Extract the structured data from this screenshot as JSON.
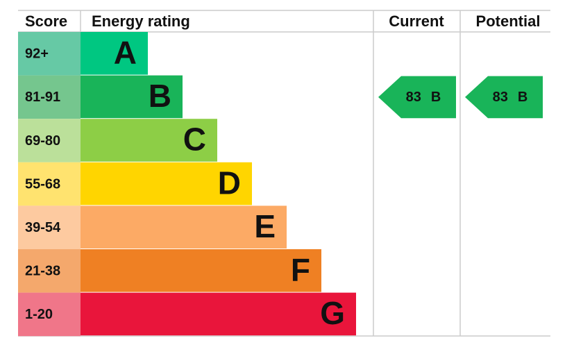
{
  "header": {
    "score": "Score",
    "rating": "Energy rating",
    "current": "Current",
    "potential": "Potential"
  },
  "rows": [
    {
      "score": "92+",
      "band": "A",
      "color": "#00c781",
      "score_color": "#66c9a5"
    },
    {
      "score": "81-91",
      "band": "B",
      "color": "#19b459",
      "score_color": "#75c68e"
    },
    {
      "score": "69-80",
      "band": "C",
      "color": "#8dce46",
      "score_color": "#bbe09a"
    },
    {
      "score": "55-68",
      "band": "D",
      "color": "#ffd500",
      "score_color": "#ffe36f"
    },
    {
      "score": "39-54",
      "band": "E",
      "color": "#fcaa65",
      "score_color": "#fdcaa0"
    },
    {
      "score": "21-38",
      "band": "F",
      "color": "#ef8023",
      "score_color": "#f4a86c"
    },
    {
      "score": "1-20",
      "band": "G",
      "color": "#e9153b",
      "score_color": "#f07689"
    }
  ],
  "current": {
    "value": 83,
    "band": "B"
  },
  "potential": {
    "value": 83,
    "band": "B"
  }
}
